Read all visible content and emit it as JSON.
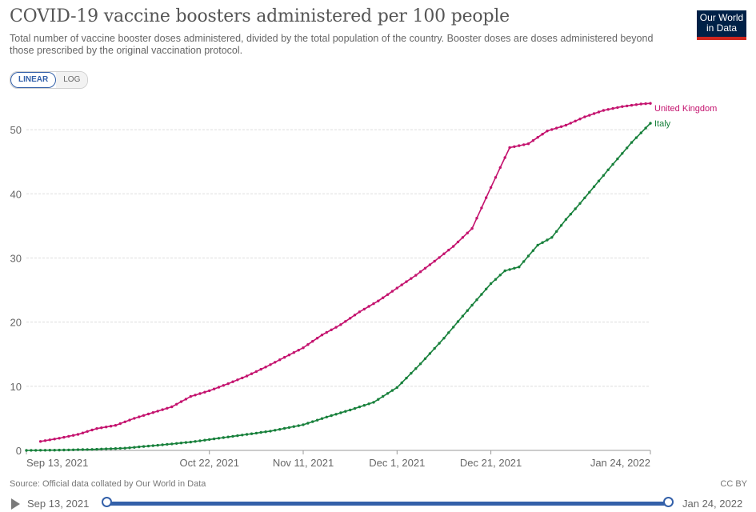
{
  "header": {
    "title": "COVID-19 vaccine boosters administered per 100 people",
    "subtitle": "Total number of vaccine booster doses administered, divided by the total population of the country. Booster doses are doses administered beyond those prescribed by the original vaccination protocol.",
    "logo_line1": "Our World",
    "logo_line2": "in Data"
  },
  "controls": {
    "linear_label": "LINEAR",
    "log_label": "LOG",
    "active": "LINEAR"
  },
  "footer": {
    "source": "Source: Official data collated by Our World in Data",
    "license": "CC BY"
  },
  "timeline": {
    "start_label": "Sep 13, 2021",
    "end_label": "Jan 24, 2022",
    "start_value": 0,
    "end_value": 1
  },
  "colors": {
    "uk": "#c4126e",
    "italy": "#17803b",
    "grid": "#dddddd",
    "accent": "#3360a9"
  },
  "chart_data": {
    "type": "line",
    "title": "COVID-19 vaccine boosters administered per 100 people",
    "xlabel": "",
    "ylabel": "",
    "ylim": [
      0,
      55
    ],
    "yticks": [
      0,
      10,
      20,
      30,
      40,
      50
    ],
    "xlim": [
      "2021-09-13",
      "2022-01-24"
    ],
    "xticks": [
      {
        "date": "2021-09-13",
        "label": "Sep 13, 2021"
      },
      {
        "date": "2021-10-22",
        "label": "Oct 22, 2021"
      },
      {
        "date": "2021-11-11",
        "label": "Nov 11, 2021"
      },
      {
        "date": "2021-12-01",
        "label": "Dec 1, 2021"
      },
      {
        "date": "2021-12-21",
        "label": "Dec 21, 2021"
      },
      {
        "date": "2022-01-24",
        "label": "Jan 24, 2022"
      }
    ],
    "grid": true,
    "legend": "end-of-line labels",
    "series": [
      {
        "name": "United Kingdom",
        "points": [
          [
            "2021-09-16",
            1.4
          ],
          [
            "2021-09-20",
            1.9
          ],
          [
            "2021-09-24",
            2.5
          ],
          [
            "2021-09-28",
            3.4
          ],
          [
            "2021-10-02",
            3.9
          ],
          [
            "2021-10-06",
            5.0
          ],
          [
            "2021-10-10",
            5.9
          ],
          [
            "2021-10-14",
            6.8
          ],
          [
            "2021-10-18",
            8.4
          ],
          [
            "2021-10-22",
            9.3
          ],
          [
            "2021-10-26",
            10.4
          ],
          [
            "2021-10-30",
            11.6
          ],
          [
            "2021-11-03",
            13.0
          ],
          [
            "2021-11-07",
            14.5
          ],
          [
            "2021-11-11",
            16.0
          ],
          [
            "2021-11-15",
            18.0
          ],
          [
            "2021-11-19",
            19.6
          ],
          [
            "2021-11-23",
            21.6
          ],
          [
            "2021-11-27",
            23.3
          ],
          [
            "2021-12-01",
            25.3
          ],
          [
            "2021-12-05",
            27.3
          ],
          [
            "2021-12-09",
            29.5
          ],
          [
            "2021-12-13",
            31.8
          ],
          [
            "2021-12-17",
            34.6
          ],
          [
            "2021-12-21",
            41.0
          ],
          [
            "2021-12-25",
            47.2
          ],
          [
            "2021-12-29",
            47.8
          ],
          [
            "2022-01-02",
            49.8
          ],
          [
            "2022-01-06",
            50.7
          ],
          [
            "2022-01-10",
            52.0
          ],
          [
            "2022-01-14",
            53.0
          ],
          [
            "2022-01-18",
            53.6
          ],
          [
            "2022-01-22",
            54.0
          ],
          [
            "2022-01-24",
            54.1
          ]
        ]
      },
      {
        "name": "Italy",
        "points": [
          [
            "2021-09-13",
            0.0
          ],
          [
            "2021-09-20",
            0.05
          ],
          [
            "2021-09-27",
            0.15
          ],
          [
            "2021-10-04",
            0.35
          ],
          [
            "2021-10-11",
            0.8
          ],
          [
            "2021-10-18",
            1.3
          ],
          [
            "2021-10-22",
            1.7
          ],
          [
            "2021-10-29",
            2.4
          ],
          [
            "2021-11-04",
            3.0
          ],
          [
            "2021-11-11",
            4.0
          ],
          [
            "2021-11-16",
            5.2
          ],
          [
            "2021-11-21",
            6.3
          ],
          [
            "2021-11-26",
            7.5
          ],
          [
            "2021-12-01",
            9.8
          ],
          [
            "2021-12-06",
            13.5
          ],
          [
            "2021-12-11",
            17.5
          ],
          [
            "2021-12-16",
            21.8
          ],
          [
            "2021-12-21",
            26.0
          ],
          [
            "2021-12-24",
            28.0
          ],
          [
            "2021-12-27",
            28.6
          ],
          [
            "2021-12-31",
            32.0
          ],
          [
            "2022-01-03",
            33.2
          ],
          [
            "2022-01-06",
            36.0
          ],
          [
            "2022-01-09",
            38.5
          ],
          [
            "2022-01-13",
            42.0
          ],
          [
            "2022-01-16",
            44.6
          ],
          [
            "2022-01-20",
            48.0
          ],
          [
            "2022-01-24",
            51.0
          ]
        ]
      }
    ]
  }
}
